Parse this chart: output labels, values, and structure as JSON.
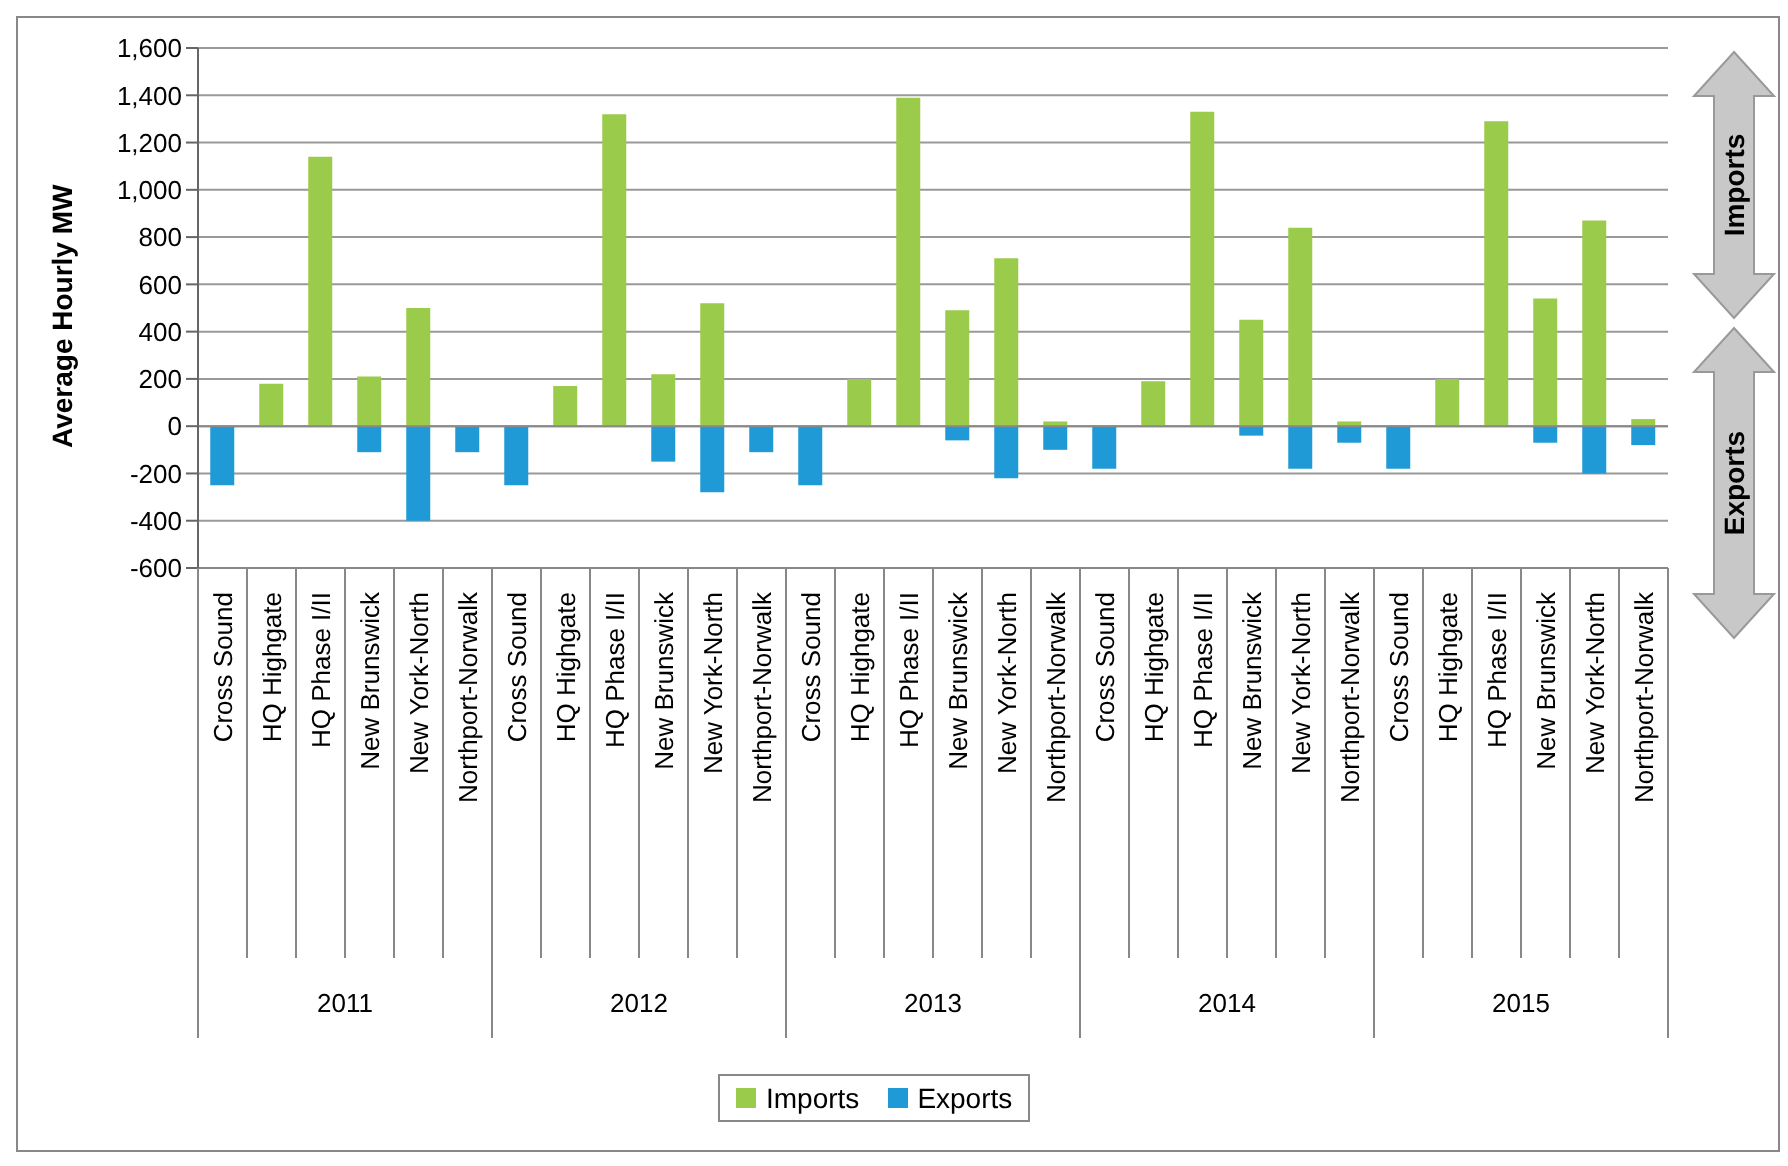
{
  "chart_data": {
    "type": "bar",
    "stacked": true,
    "ylabel": "Average Hourly MW",
    "categories": [
      "Cross Sound",
      "HQ Highgate",
      "HQ Phase I/II",
      "New Brunswick",
      "New York-North",
      "Northport-Norwalk",
      "Cross Sound",
      "HQ Highgate",
      "HQ Phase I/II",
      "New Brunswick",
      "New York-North",
      "Northport-Norwalk",
      "Cross Sound",
      "HQ Highgate",
      "HQ Phase I/II",
      "New Brunswick",
      "New York-North",
      "Northport-Norwalk",
      "Cross Sound",
      "HQ Highgate",
      "HQ Phase I/II",
      "New Brunswick",
      "New York-North",
      "Northport-Norwalk",
      "Cross Sound",
      "HQ Highgate",
      "HQ Phase I/II",
      "New Brunswick",
      "New York-North",
      "Northport-Norwalk"
    ],
    "series": [
      {
        "name": "Imports",
        "color": "#9bcb4b",
        "values": [
          null,
          180,
          1140,
          210,
          500,
          null,
          null,
          170,
          1320,
          220,
          520,
          null,
          null,
          200,
          1390,
          490,
          710,
          20,
          null,
          190,
          1330,
          450,
          840,
          20,
          null,
          200,
          1290,
          540,
          870,
          30
        ]
      },
      {
        "name": "Exports",
        "color": "#1f9ad6",
        "values": [
          -250,
          null,
          null,
          -110,
          -400,
          -110,
          -250,
          null,
          null,
          -150,
          -280,
          -110,
          -250,
          null,
          null,
          -60,
          -220,
          -100,
          -180,
          null,
          null,
          -40,
          -180,
          -70,
          -180,
          null,
          null,
          -70,
          -200,
          -80
        ]
      }
    ],
    "ylim": [
      -600,
      1600
    ],
    "yticks": [
      -600,
      -400,
      -200,
      0,
      200,
      400,
      600,
      800,
      {
        "value": 1000,
        "label": "1,000"
      },
      {
        "value": 1200,
        "label": "1,200"
      },
      {
        "value": 1400,
        "label": "1,400"
      },
      {
        "value": 1600,
        "label": "1,600"
      }
    ],
    "grid": "y",
    "legend": "bottom",
    "annotations": [
      "2011",
      "2012",
      "2013",
      "2014",
      "2015",
      "Imports",
      "Exports"
    ]
  }
}
